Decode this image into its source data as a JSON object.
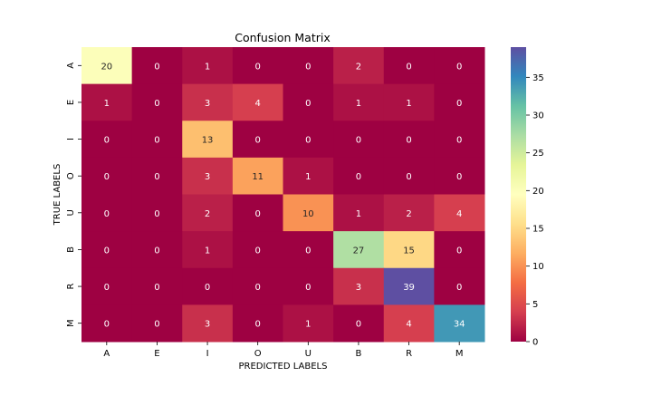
{
  "chart_data": {
    "type": "heatmap",
    "title": "Confusion Matrix",
    "xlabel": "PREDICTED LABELS",
    "ylabel": "TRUE LABELS",
    "x_categories": [
      "A",
      "E",
      "I",
      "O",
      "U",
      "B",
      "R",
      "M"
    ],
    "y_categories": [
      "A",
      "E",
      "I",
      "O",
      "U",
      "B",
      "R",
      "M"
    ],
    "values": [
      [
        20,
        0,
        1,
        0,
        0,
        2,
        0,
        0
      ],
      [
        1,
        0,
        3,
        4,
        0,
        1,
        1,
        0
      ],
      [
        0,
        0,
        13,
        0,
        0,
        0,
        0,
        0
      ],
      [
        0,
        0,
        3,
        11,
        1,
        0,
        0,
        0
      ],
      [
        0,
        0,
        2,
        0,
        10,
        1,
        2,
        4
      ],
      [
        0,
        0,
        1,
        0,
        0,
        27,
        15,
        0
      ],
      [
        0,
        0,
        0,
        0,
        0,
        3,
        39,
        0
      ],
      [
        0,
        0,
        3,
        0,
        1,
        0,
        4,
        34
      ]
    ],
    "colormap": "Spectral",
    "vmin": 0,
    "vmax": 39,
    "colorbar_ticks": [
      0,
      5,
      10,
      15,
      20,
      25,
      30,
      35
    ],
    "annotations": true,
    "grid": false
  }
}
